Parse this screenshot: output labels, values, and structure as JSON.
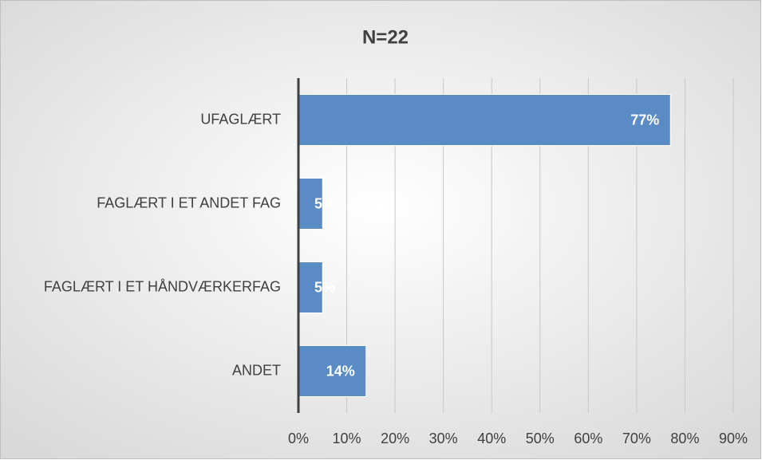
{
  "chart_data": {
    "type": "barh",
    "title": "N=22",
    "categories": [
      "UFAGLÆRT",
      "FAGLÆRT I ET ANDET FAG",
      "FAGLÆRT I ET HÅNDVÆRKERFAG",
      "ANDET"
    ],
    "values": [
      77,
      5,
      5,
      14
    ],
    "value_labels": [
      "77%",
      "5%",
      "5%",
      "14%"
    ],
    "color": "#5b8bc5",
    "xlim": [
      0,
      90
    ],
    "xticks": [
      {
        "value": 0,
        "label": "0%"
      },
      {
        "value": 10,
        "label": "10%"
      },
      {
        "value": 20,
        "label": "20%"
      },
      {
        "value": 30,
        "label": "30%"
      },
      {
        "value": 40,
        "label": "40%"
      },
      {
        "value": 50,
        "label": "50%"
      },
      {
        "value": 60,
        "label": "60%"
      },
      {
        "value": 70,
        "label": "70%"
      },
      {
        "value": 80,
        "label": "80%"
      },
      {
        "value": 90,
        "label": "90%"
      }
    ],
    "grid": true
  }
}
